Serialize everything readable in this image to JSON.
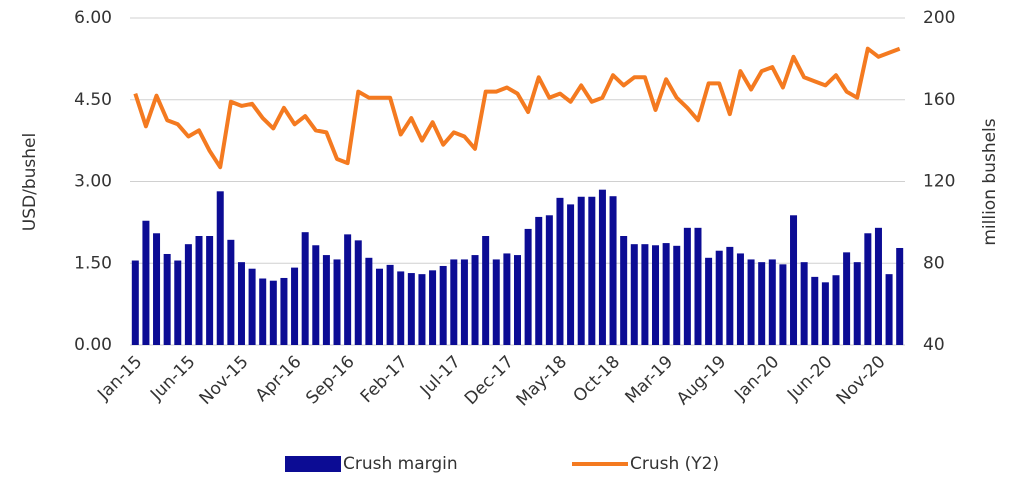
{
  "chart_data": {
    "type": "bar_line",
    "y_label": "USD/bushel",
    "y2_label": "million bushels",
    "categories": [
      "Jan-15",
      null,
      null,
      null,
      null,
      "Jun-15",
      null,
      null,
      null,
      null,
      "Nov-15",
      null,
      null,
      null,
      null,
      "Apr-16",
      null,
      null,
      null,
      null,
      "Sep-16",
      null,
      null,
      null,
      null,
      "Feb-17",
      null,
      null,
      null,
      null,
      "Jul-17",
      null,
      null,
      null,
      null,
      "Dec-17",
      null,
      null,
      null,
      null,
      "May-18",
      null,
      null,
      null,
      null,
      "Oct-18",
      null,
      null,
      null,
      null,
      "Mar-19",
      null,
      null,
      null,
      null,
      "Aug-19",
      null,
      null,
      null,
      null,
      "Jan-20",
      null,
      null,
      null,
      null,
      "Jun-20",
      null,
      null,
      null,
      null,
      "Nov-20",
      null,
      null
    ],
    "series": [
      {
        "name": "Crush margin",
        "type": "bar",
        "color": "#0c0c94",
        "values": [
          1.55,
          2.28,
          2.05,
          1.67,
          1.55,
          1.85,
          2.0,
          2.0,
          2.82,
          1.93,
          1.52,
          1.4,
          1.22,
          1.18,
          1.23,
          1.42,
          2.07,
          1.83,
          1.65,
          1.57,
          2.03,
          1.92,
          1.6,
          1.4,
          1.47,
          1.35,
          1.32,
          1.3,
          1.37,
          1.45,
          1.57,
          1.57,
          1.65,
          2.0,
          1.57,
          1.68,
          1.65,
          2.13,
          2.35,
          2.38,
          2.7,
          2.58,
          2.72,
          2.72,
          2.85,
          2.73,
          2.0,
          1.85,
          1.85,
          1.83,
          1.87,
          1.82,
          2.15,
          2.15,
          1.6,
          1.73,
          1.8,
          1.68,
          1.57,
          1.52,
          1.57,
          1.48,
          2.38,
          1.52,
          1.25,
          1.15,
          1.28,
          1.7,
          1.52,
          2.05,
          2.15,
          1.3,
          1.78
        ]
      },
      {
        "name": "Crush (Y2)",
        "type": "line",
        "axis": "y2",
        "color": "#f47a20",
        "values": [
          163,
          147,
          162,
          150,
          148,
          142,
          145,
          135,
          127,
          159,
          157,
          158,
          151,
          146,
          156,
          148,
          152,
          145,
          144,
          131,
          129,
          164,
          161,
          161,
          161,
          143,
          151,
          140,
          149,
          138,
          144,
          142,
          136,
          164,
          164,
          166,
          163,
          154,
          171,
          161,
          163,
          159,
          167,
          159,
          161,
          172,
          167,
          171,
          171,
          155,
          170,
          161,
          156,
          150,
          168,
          168,
          153,
          174,
          165,
          174,
          176,
          166,
          181,
          171,
          169,
          167,
          172,
          164,
          161,
          185,
          181,
          183,
          185
        ]
      }
    ],
    "ylim": [
      0,
      6
    ],
    "yticks": [
      {
        "value": 0,
        "label": "0.00"
      },
      {
        "value": 1.5,
        "label": "1.50"
      },
      {
        "value": 3,
        "label": "3.00"
      },
      {
        "value": 4.5,
        "label": "4.50"
      },
      {
        "value": 6,
        "label": "6.00"
      }
    ],
    "y2lim": [
      40,
      200
    ],
    "y2ticks": [
      40,
      80,
      120,
      160,
      200
    ],
    "grid": true,
    "legend": "bottom"
  }
}
